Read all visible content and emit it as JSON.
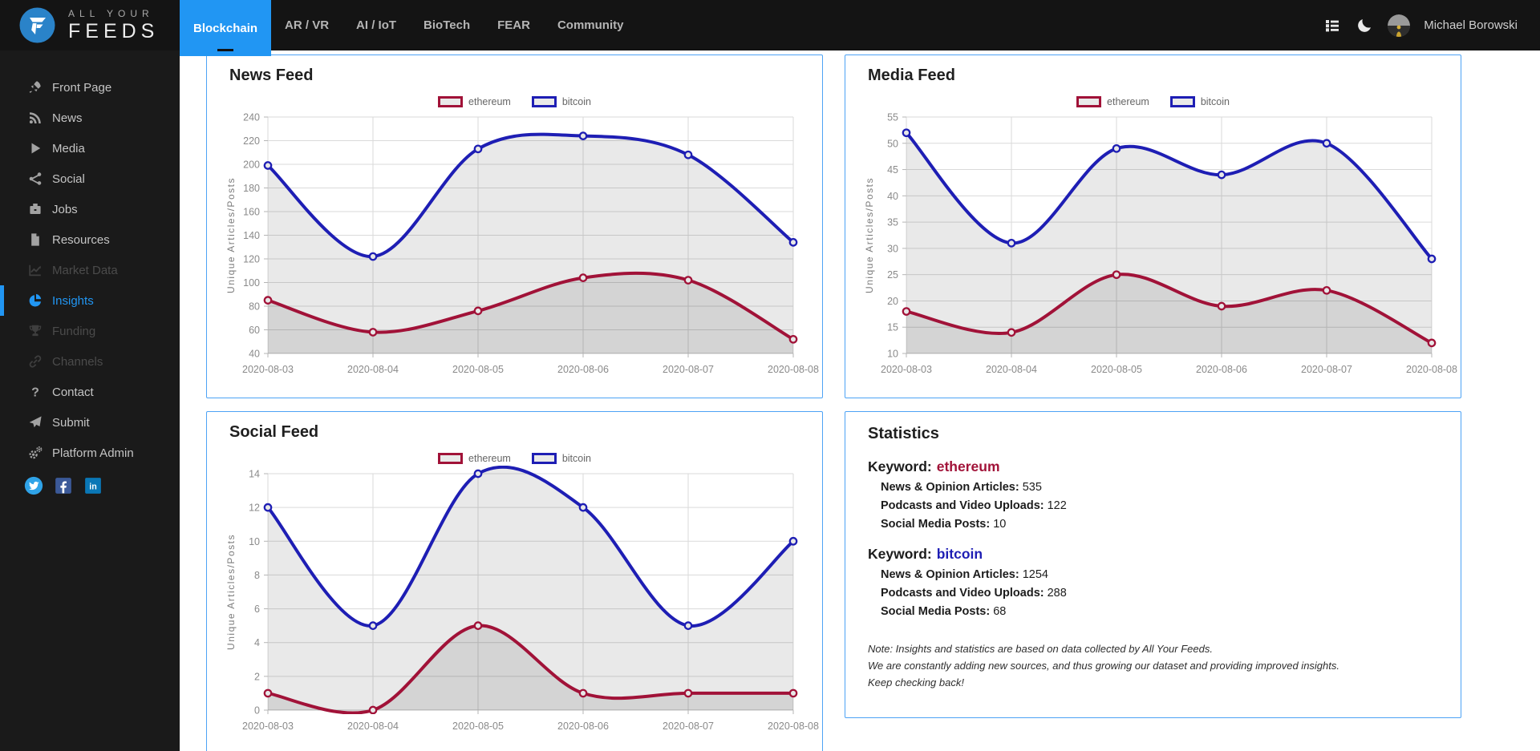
{
  "colors": {
    "accent_blue": "#2196f3",
    "panel_border": "#4da3f5",
    "series_ethereum": "#a11238",
    "series_bitcoin": "#1e1eb4",
    "area_fill": "rgba(0,0,0,0.085)"
  },
  "brand": {
    "line1": "ALL YOUR",
    "line2": "FEEDS"
  },
  "navbar": {
    "tabs": [
      {
        "label": "Blockchain",
        "active": true
      },
      {
        "label": "AR / VR",
        "active": false
      },
      {
        "label": "AI / IoT",
        "active": false
      },
      {
        "label": "BioTech",
        "active": false
      },
      {
        "label": "FEAR",
        "active": false
      },
      {
        "label": "Community",
        "active": false
      }
    ],
    "icons": [
      "list-icon",
      "moon-icon"
    ],
    "user": {
      "name": "Michael Borowski"
    }
  },
  "sidebar": {
    "items": [
      {
        "label": "Front Page",
        "icon": "rocket-icon",
        "state": "normal"
      },
      {
        "label": "News",
        "icon": "rss-icon",
        "state": "normal"
      },
      {
        "label": "Media",
        "icon": "play-icon",
        "state": "normal"
      },
      {
        "label": "Social",
        "icon": "share-icon",
        "state": "normal"
      },
      {
        "label": "Jobs",
        "icon": "briefcase-icon",
        "state": "normal"
      },
      {
        "label": "Resources",
        "icon": "file-icon",
        "state": "normal"
      },
      {
        "label": "Market Data",
        "icon": "chart-line-icon",
        "state": "disabled"
      },
      {
        "label": "Insights",
        "icon": "pie-chart-icon",
        "state": "active"
      },
      {
        "label": "Funding",
        "icon": "trophy-icon",
        "state": "disabled"
      },
      {
        "label": "Channels",
        "icon": "link-icon",
        "state": "disabled"
      },
      {
        "label": "Contact",
        "icon": "question-icon",
        "state": "normal"
      },
      {
        "label": "Submit",
        "icon": "paper-plane-icon",
        "state": "normal"
      },
      {
        "label": "Platform Admin",
        "icon": "gears-icon",
        "state": "normal"
      }
    ],
    "social": [
      {
        "name": "twitter"
      },
      {
        "name": "facebook"
      },
      {
        "name": "linkedin"
      }
    ]
  },
  "panels": {
    "news": {
      "title": "News Feed"
    },
    "media": {
      "title": "Media Feed"
    },
    "social": {
      "title": "Social Feed"
    },
    "stats": {
      "title": "Statistics",
      "keyword_label": "Keyword:",
      "groups": [
        {
          "keyword": "ethereum",
          "color": "#a11238",
          "rows": [
            {
              "label": "News & Opinion Articles:",
              "value": "535"
            },
            {
              "label": "Podcasts and Video Uploads:",
              "value": "122"
            },
            {
              "label": "Social Media Posts:",
              "value": "10"
            }
          ]
        },
        {
          "keyword": "bitcoin",
          "color": "#1e1eb4",
          "rows": [
            {
              "label": "News & Opinion Articles:",
              "value": "1254"
            },
            {
              "label": "Podcasts and Video Uploads:",
              "value": "288"
            },
            {
              "label": "Social Media Posts:",
              "value": "68"
            }
          ]
        }
      ],
      "note_lines": [
        "Note: Insights and statistics are based on data collected by All Your Feeds.",
        "We are constantly adding new sources, and thus growing our dataset and providing improved insights.",
        "Keep checking back!"
      ]
    }
  },
  "chart_data": [
    {
      "id": "news",
      "type": "line",
      "title": "News Feed",
      "xlabel": "",
      "ylabel": "Unique Articles/Posts",
      "categories": [
        "2020-08-03",
        "2020-08-04",
        "2020-08-05",
        "2020-08-06",
        "2020-08-07",
        "2020-08-08"
      ],
      "ylim": [
        40,
        240
      ],
      "ystep": 20,
      "grid": true,
      "legend_position": "top",
      "series": [
        {
          "name": "ethereum",
          "color": "#a11238",
          "values": [
            85,
            58,
            76,
            104,
            102,
            52
          ]
        },
        {
          "name": "bitcoin",
          "color": "#1e1eb4",
          "values": [
            199,
            122,
            213,
            224,
            208,
            134
          ]
        }
      ]
    },
    {
      "id": "media",
      "type": "line",
      "title": "Media Feed",
      "xlabel": "",
      "ylabel": "Unique Articles/Posts",
      "categories": [
        "2020-08-03",
        "2020-08-04",
        "2020-08-05",
        "2020-08-06",
        "2020-08-07",
        "2020-08-08"
      ],
      "ylim": [
        10,
        55
      ],
      "ystep": 5,
      "grid": true,
      "legend_position": "top",
      "series": [
        {
          "name": "ethereum",
          "color": "#a11238",
          "values": [
            18,
            14,
            25,
            19,
            22,
            12
          ]
        },
        {
          "name": "bitcoin",
          "color": "#1e1eb4",
          "values": [
            52,
            31,
            49,
            44,
            50,
            28
          ]
        }
      ]
    },
    {
      "id": "social",
      "type": "line",
      "title": "Social Feed",
      "xlabel": "",
      "ylabel": "Unique Articles/Posts",
      "categories": [
        "2020-08-03",
        "2020-08-04",
        "2020-08-05",
        "2020-08-06",
        "2020-08-07",
        "2020-08-08"
      ],
      "ylim": [
        0,
        14
      ],
      "ystep": 2,
      "grid": true,
      "legend_position": "top",
      "series": [
        {
          "name": "ethereum",
          "color": "#a11238",
          "values": [
            1,
            0,
            5,
            1,
            1,
            1
          ]
        },
        {
          "name": "bitcoin",
          "color": "#1e1eb4",
          "values": [
            12,
            5,
            14,
            12,
            5,
            10
          ]
        }
      ]
    }
  ]
}
